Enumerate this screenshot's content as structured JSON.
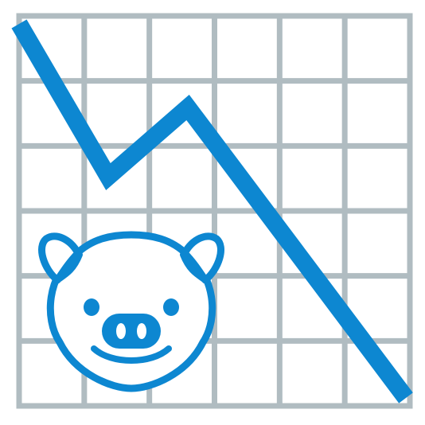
{
  "icon": {
    "name": "chart-decreasing-with-pig-icon",
    "grid": {
      "columns": 6,
      "rows": 6
    },
    "colors": {
      "background": "#ffffff",
      "grid": "#b0bcc1",
      "trend_line": "#0d87d1",
      "pig_outline": "#0d87d1",
      "pig_fill": "#ffffff"
    },
    "trend": {
      "direction": "down"
    }
  }
}
